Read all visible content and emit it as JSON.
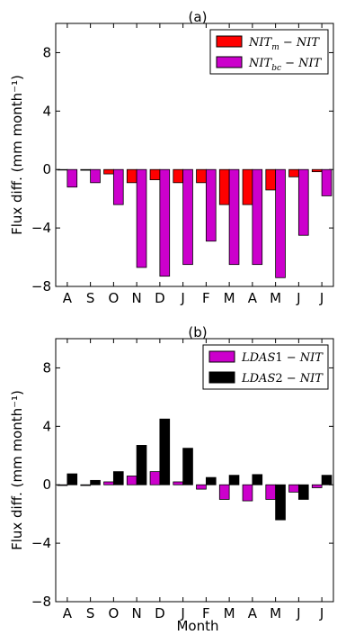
{
  "figure": {
    "xlabel": "Month"
  },
  "legend_labels": {
    "a": [
      "NIT_m − NIT",
      "NIT_bc − NIT"
    ],
    "b": [
      "LDAS1 − NIT",
      "LDAS2 − NIT"
    ]
  },
  "chart_data": [
    {
      "id": "a",
      "type": "bar",
      "title": "(a)",
      "xlabel": "",
      "ylabel": "Flux diff. (mm month⁻¹)",
      "ylim": [
        -8,
        10
      ],
      "yticks": [
        -8,
        -4,
        0,
        4,
        8
      ],
      "ytick_labels": [
        "−8",
        "−4",
        "0",
        "4",
        "8"
      ],
      "categories": [
        "A",
        "S",
        "O",
        "N",
        "D",
        "J",
        "F",
        "M",
        "A",
        "M",
        "J",
        "J"
      ],
      "legend_position": "top-right",
      "grid": false,
      "series": [
        {
          "name": "NIT_m − NIT",
          "color": "#ff0000",
          "values": [
            0.0,
            -0.05,
            -0.3,
            -0.9,
            -0.7,
            -0.9,
            -0.9,
            -2.4,
            -2.4,
            -1.4,
            -0.5,
            -0.15
          ]
        },
        {
          "name": "NIT_bc − NIT",
          "color": "#cc00cc",
          "values": [
            -1.2,
            -0.9,
            -2.4,
            -6.7,
            -7.3,
            -6.5,
            -4.9,
            -6.5,
            -6.5,
            -7.4,
            -4.5,
            -1.8
          ]
        }
      ]
    },
    {
      "id": "b",
      "type": "bar",
      "title": "(b)",
      "xlabel": "Month",
      "ylabel": "Flux diff. (mm month⁻¹)",
      "ylim": [
        -8,
        10
      ],
      "yticks": [
        -8,
        -4,
        0,
        4,
        8
      ],
      "ytick_labels": [
        "−8",
        "−4",
        "0",
        "4",
        "8"
      ],
      "categories": [
        "A",
        "S",
        "O",
        "N",
        "D",
        "J",
        "F",
        "M",
        "A",
        "M",
        "J",
        "J"
      ],
      "legend_position": "top-right",
      "grid": false,
      "series": [
        {
          "name": "LDAS1 − NIT",
          "color": "#cc00cc",
          "values": [
            -0.05,
            -0.05,
            0.2,
            0.6,
            0.9,
            0.2,
            -0.3,
            -1.0,
            -1.1,
            -1.0,
            -0.5,
            -0.2
          ]
        },
        {
          "name": "LDAS2 − NIT",
          "color": "#000000",
          "values": [
            0.75,
            0.3,
            0.9,
            2.7,
            4.5,
            2.5,
            0.5,
            0.65,
            0.7,
            -2.4,
            -1.0,
            0.65
          ]
        }
      ]
    }
  ]
}
